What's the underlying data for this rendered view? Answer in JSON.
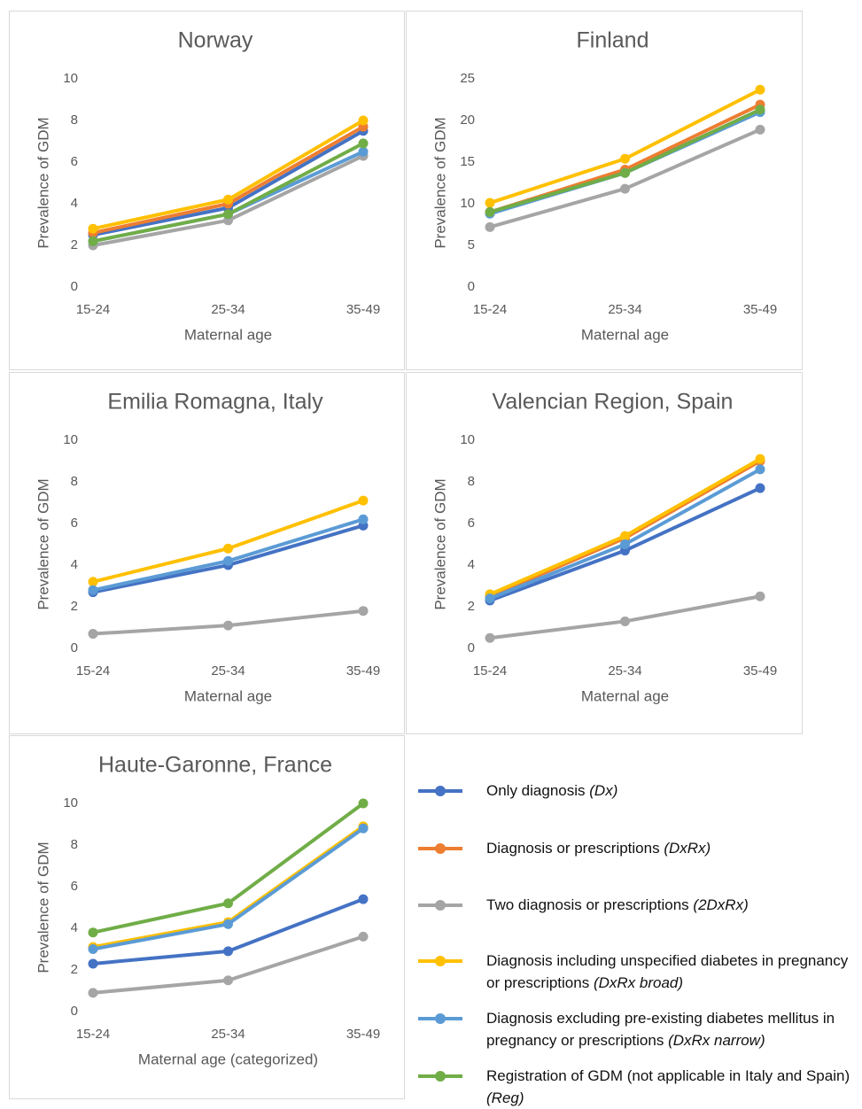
{
  "chart_data": [
    {
      "type": "line",
      "title": "Norway",
      "x_label": "Maternal age",
      "y_label": "Prevalence of GDM",
      "categories": [
        "15-24",
        "25-34",
        "35-49"
      ],
      "ylim": [
        0,
        10
      ],
      "yticks": [
        0,
        2,
        4,
        6,
        8,
        10
      ],
      "series": [
        {
          "color": "#4472c4",
          "values": [
            2.5,
            3.8,
            7.5
          ]
        },
        {
          "color": "#ed7d31",
          "values": [
            2.6,
            4.0,
            7.7
          ]
        },
        {
          "color": "#a5a5a5",
          "values": [
            2.0,
            3.2,
            6.3
          ]
        },
        {
          "color": "#ffc000",
          "values": [
            2.8,
            4.2,
            8.0
          ]
        },
        {
          "color": "#5b9bd5",
          "values": [
            2.2,
            3.5,
            6.5
          ]
        },
        {
          "color": "#70ad47",
          "values": [
            2.2,
            3.5,
            6.9
          ]
        }
      ]
    },
    {
      "type": "line",
      "title": "Finland",
      "x_label": "Maternal age",
      "y_label": "Prevalence of GDM",
      "categories": [
        "15-24",
        "25-34",
        "35-49"
      ],
      "ylim": [
        0,
        25
      ],
      "yticks": [
        0,
        5,
        10,
        15,
        20,
        25
      ],
      "series": [
        {
          "color": "#4472c4",
          "values": [
            8.9,
            13.8,
            21.2
          ]
        },
        {
          "color": "#ed7d31",
          "values": [
            9.0,
            14.1,
            21.9
          ]
        },
        {
          "color": "#a5a5a5",
          "values": [
            7.2,
            11.8,
            18.9
          ]
        },
        {
          "color": "#ffc000",
          "values": [
            10.1,
            15.4,
            23.7
          ]
        },
        {
          "color": "#5b9bd5",
          "values": [
            8.8,
            13.7,
            21.0
          ]
        },
        {
          "color": "#70ad47",
          "values": [
            9.0,
            13.7,
            21.3
          ]
        }
      ]
    },
    {
      "type": "line",
      "title": "Emilia Romagna, Italy",
      "x_label": "Maternal age",
      "y_label": "Prevalence of GDM",
      "categories": [
        "15-24",
        "25-34",
        "35-49"
      ],
      "ylim": [
        0,
        10
      ],
      "yticks": [
        0,
        2,
        4,
        6,
        8,
        10
      ],
      "series": [
        {
          "color": "#4472c4",
          "values": [
            2.7,
            4.0,
            5.9
          ]
        },
        {
          "color": "#a5a5a5",
          "values": [
            0.7,
            1.1,
            1.8
          ]
        },
        {
          "color": "#ffc000",
          "values": [
            3.2,
            4.8,
            7.1
          ]
        },
        {
          "color": "#5b9bd5",
          "values": [
            2.8,
            4.2,
            6.2
          ]
        }
      ]
    },
    {
      "type": "line",
      "title": "Valencian Region, Spain",
      "x_label": "Maternal age",
      "y_label": "Prevalence of GDM",
      "categories": [
        "15-24",
        "25-34",
        "35-49"
      ],
      "ylim": [
        0,
        10
      ],
      "yticks": [
        0,
        2,
        4,
        6,
        8,
        10
      ],
      "series": [
        {
          "color": "#4472c4",
          "values": [
            2.3,
            4.7,
            7.7
          ]
        },
        {
          "color": "#ed7d31",
          "values": [
            2.5,
            5.3,
            9.0
          ]
        },
        {
          "color": "#a5a5a5",
          "values": [
            0.5,
            1.3,
            2.5
          ]
        },
        {
          "color": "#ffc000",
          "values": [
            2.6,
            5.4,
            9.1
          ]
        },
        {
          "color": "#5b9bd5",
          "values": [
            2.4,
            5.0,
            8.6
          ]
        }
      ]
    },
    {
      "type": "line",
      "title": "Haute-Garonne, France",
      "x_label": "Maternal age (categorized)",
      "y_label": "Prevalence of GDM",
      "categories": [
        "15-24",
        "25-34",
        "35-49"
      ],
      "ylim": [
        0,
        10
      ],
      "yticks": [
        0,
        2,
        4,
        6,
        8,
        10
      ],
      "series": [
        {
          "color": "#4472c4",
          "values": [
            2.3,
            2.9,
            5.4
          ]
        },
        {
          "color": "#a5a5a5",
          "values": [
            0.9,
            1.5,
            3.6
          ]
        },
        {
          "color": "#ffc000",
          "values": [
            3.1,
            4.3,
            8.9
          ]
        },
        {
          "color": "#5b9bd5",
          "values": [
            3.0,
            4.2,
            8.8
          ]
        },
        {
          "color": "#70ad47",
          "values": [
            3.8,
            5.2,
            10.0
          ]
        }
      ]
    }
  ],
  "legend": [
    {
      "text": "Only diagnosis",
      "code": "(Dx)",
      "color": "#4472c4"
    },
    {
      "text": "Diagnosis or prescriptions",
      "code": "(DxRx)",
      "color": "#ed7d31"
    },
    {
      "text": "Two diagnosis or prescriptions",
      "code": "(2DxRx)",
      "color": "#a5a5a5"
    },
    {
      "text": "Diagnosis including unspecified diabetes in pregnancy or prescriptions",
      "code": "(DxRx broad)",
      "color": "#ffc000"
    },
    {
      "text": "Diagnosis excluding pre-existing diabetes mellitus in pregnancy or prescriptions",
      "code": "(DxRx narrow)",
      "color": "#5b9bd5"
    },
    {
      "text": "Registration of GDM (not applicable in Italy and Spain)",
      "code": "(Reg)",
      "color": "#70ad47"
    }
  ]
}
